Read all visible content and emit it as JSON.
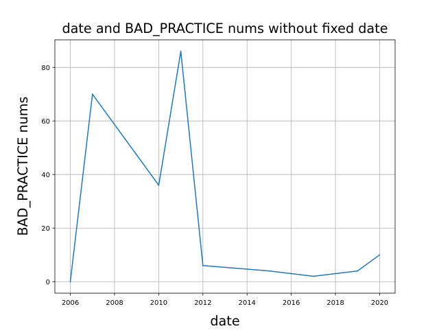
{
  "chart_data": {
    "type": "line",
    "title": "date and BAD_PRACTICE nums without fixed date",
    "xlabel": "date",
    "ylabel": "BAD_PRACTICE nums",
    "xlim": [
      2005.3,
      2020.7
    ],
    "ylim": [
      -4.3,
      90.3
    ],
    "xticks": [
      2006,
      2008,
      2010,
      2012,
      2014,
      2016,
      2018,
      2020
    ],
    "yticks": [
      0,
      20,
      40,
      60,
      80
    ],
    "grid": true,
    "line_color": "#1f77b4",
    "series": [
      {
        "x": [
          2006,
          2007,
          2010,
          2011,
          2012,
          2015,
          2017,
          2019,
          2020
        ],
        "y": [
          0,
          70,
          36,
          86,
          6,
          4,
          2,
          4,
          10
        ]
      }
    ]
  }
}
